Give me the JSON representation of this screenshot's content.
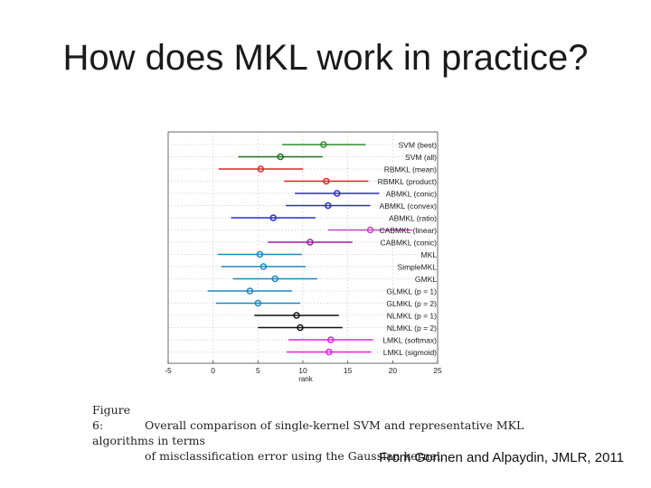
{
  "slide": {
    "title": "How does MKL work in practice?",
    "credit": "From Gonnen and Alpaydin, JMLR, 2011"
  },
  "caption": {
    "label": "Figure 6:",
    "line1": "Overall comparison of single-kernel SVM and representative MKL algorithms in terms",
    "line2": "of misclassification error using the Gaussian kernel."
  },
  "chart_data": {
    "type": "scatter",
    "title": "",
    "xlabel": "rank",
    "ylabel": "",
    "xlim": [
      -5,
      25
    ],
    "xticks": [
      -5,
      0,
      5,
      10,
      15,
      20,
      25
    ],
    "grid": "horizontal dotted",
    "legend": "labels at right end of each row",
    "series": [
      {
        "name": "SVM (best)",
        "mean": 12.3,
        "low": 7.7,
        "high": 17.0,
        "color": "#2e8b2e"
      },
      {
        "name": "SVM (all)",
        "mean": 7.5,
        "low": 2.8,
        "high": 12.2,
        "color": "#1f6e1f"
      },
      {
        "name": "RBMKL (mean)",
        "mean": 5.3,
        "low": 0.6,
        "high": 10.0,
        "color": "#e02424"
      },
      {
        "name": "RBMKL (product)",
        "mean": 12.6,
        "low": 7.9,
        "high": 17.3,
        "color": "#e02424"
      },
      {
        "name": "ABMKL (conic)",
        "mean": 13.8,
        "low": 9.1,
        "high": 18.5,
        "color": "#2a2ad8"
      },
      {
        "name": "ABMKL (convex)",
        "mean": 12.8,
        "low": 8.1,
        "high": 17.5,
        "color": "#2a2ad8"
      },
      {
        "name": "ABMKL (ratio)",
        "mean": 6.7,
        "low": 2.0,
        "high": 11.4,
        "color": "#2a2ad8"
      },
      {
        "name": "CABMKL (linear)",
        "mean": 17.5,
        "low": 12.8,
        "high": 22.2,
        "color": "#c444c4"
      },
      {
        "name": "CABMKL (conic)",
        "mean": 10.8,
        "low": 6.1,
        "high": 15.5,
        "color": "#9a1e9a"
      },
      {
        "name": "MKL",
        "mean": 5.2,
        "low": 0.5,
        "high": 9.9,
        "color": "#1e86c0"
      },
      {
        "name": "SimpleMKL",
        "mean": 5.6,
        "low": 0.9,
        "high": 10.3,
        "color": "#1e86c0"
      },
      {
        "name": "GMKL",
        "mean": 6.9,
        "low": 2.2,
        "high": 11.6,
        "color": "#1e86c0"
      },
      {
        "name": "GLMKL (p = 1)",
        "mean": 4.1,
        "low": -0.6,
        "high": 8.8,
        "color": "#1e86c0"
      },
      {
        "name": "GLMKL (p = 2)",
        "mean": 5.0,
        "low": 0.3,
        "high": 9.7,
        "color": "#1e86c0"
      },
      {
        "name": "NLMKL (p = 1)",
        "mean": 9.3,
        "low": 4.6,
        "high": 14.0,
        "color": "#111111"
      },
      {
        "name": "NLMKL (p = 2)",
        "mean": 9.7,
        "low": 5.0,
        "high": 14.4,
        "color": "#111111"
      },
      {
        "name": "LMKL (softmax)",
        "mean": 13.1,
        "low": 8.4,
        "high": 17.8,
        "color": "#e020e0"
      },
      {
        "name": "LMKL (sigmoid)",
        "mean": 12.9,
        "low": 8.2,
        "high": 17.6,
        "color": "#e020e0"
      }
    ]
  }
}
